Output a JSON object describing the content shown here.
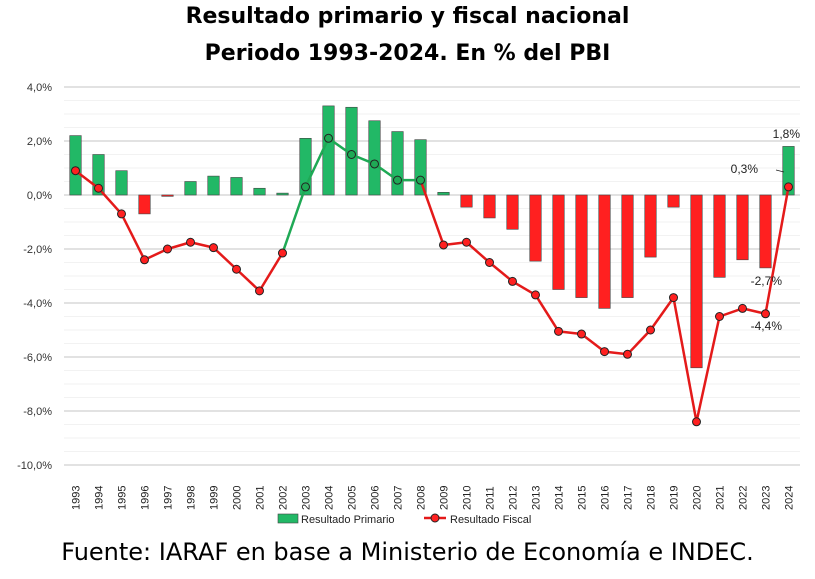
{
  "chart_data": {
    "type": "bar+line",
    "title": "Resultado primario y fiscal nacional",
    "subtitle": "Periodo 1993-2024. En % del PBI",
    "categories": [
      "1993",
      "1994",
      "1995",
      "1996",
      "1997",
      "1998",
      "1999",
      "2000",
      "2001",
      "2002",
      "2003",
      "2004",
      "2005",
      "2006",
      "2007",
      "2008",
      "2009",
      "2010",
      "2011",
      "2012",
      "2013",
      "2014",
      "2015",
      "2016",
      "2017",
      "2018",
      "2019",
      "2020",
      "2021",
      "2022",
      "2023",
      "2024"
    ],
    "series": [
      {
        "name": "Resultado Primario",
        "type": "bar",
        "values": [
          2.2,
          1.5,
          0.9,
          -0.7,
          -0.05,
          0.5,
          0.7,
          0.65,
          0.25,
          0.07,
          2.1,
          3.3,
          3.25,
          2.75,
          2.35,
          2.05,
          0.1,
          -0.45,
          -0.85,
          -1.27,
          -2.45,
          -3.5,
          -3.8,
          -4.2,
          -3.8,
          -2.3,
          -0.45,
          -6.4,
          -3.05,
          -2.4,
          -2.7,
          1.8
        ]
      },
      {
        "name": "Resultado Fiscal",
        "type": "line",
        "values": [
          0.9,
          0.25,
          -0.7,
          -2.4,
          -2.0,
          -1.75,
          -1.95,
          -2.75,
          -3.55,
          -2.15,
          0.3,
          2.1,
          1.5,
          1.15,
          0.55,
          0.55,
          -1.85,
          -1.75,
          -2.5,
          -3.2,
          -3.7,
          -5.05,
          -5.15,
          -5.8,
          -5.9,
          -5.0,
          -3.8,
          -8.4,
          -4.5,
          -4.2,
          -4.4,
          0.3
        ]
      }
    ],
    "ylim": [
      -10,
      4
    ],
    "yticks": [
      "-10,0%",
      "-8,0%",
      "-6,0%",
      "-4,0%",
      "-2,0%",
      "0,0%",
      "2,0%",
      "4,0%"
    ],
    "annotations": [
      {
        "text": "1,8%",
        "year": "2024",
        "series": "Resultado Primario"
      },
      {
        "text": "0,3%",
        "year": "2024",
        "series": "Resultado Fiscal"
      },
      {
        "text": "-2,7%",
        "year": "2023",
        "series": "Resultado Primario"
      },
      {
        "text": "-4,4%",
        "year": "2023",
        "series": "Resultado Fiscal"
      }
    ],
    "legend": "bottom",
    "grid": true,
    "colors": {
      "positive": "#22b866",
      "negative": "#ff2020",
      "line_negative": "#e41a1a",
      "line_positive": "#1fa955"
    }
  },
  "footer": "Fuente: IARAF en base a Ministerio de Economía e INDEC."
}
